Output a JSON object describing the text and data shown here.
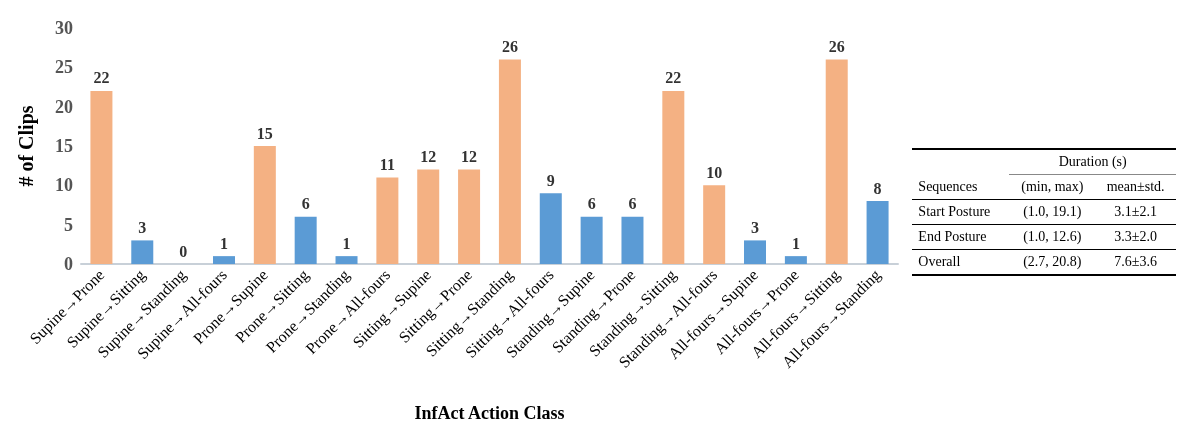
{
  "chart_data": [
    {
      "type": "bar",
      "xlabel": "InfAct Action Class",
      "ylabel": "# of Clips",
      "categories": [
        "Supine→Prone",
        "Supine→Sitting",
        "Supine→Standing",
        "Supine→All-fours",
        "Prone→Supine",
        "Prone→Sitting",
        "Prone→Standing",
        "Prone→All-fours",
        "Sitting→Supine",
        "Sitting→Prone",
        "Sitting→Standing",
        "Sitting→All-fours",
        "Standing→Supine",
        "Standing→Prone",
        "Standing→Sitting",
        "Standing→All-fours",
        "All-fours→Supine",
        "All-fours→Prone",
        "All-fours→Sitting",
        "All-fours→Standing"
      ],
      "values": [
        22,
        3,
        0,
        1,
        15,
        6,
        1,
        11,
        12,
        12,
        26,
        9,
        6,
        6,
        22,
        10,
        3,
        1,
        26,
        8
      ],
      "colors": [
        "#f4b183",
        "#5b9bd5",
        "#5b9bd5",
        "#5b9bd5",
        "#f4b183",
        "#5b9bd5",
        "#5b9bd5",
        "#f4b183",
        "#f4b183",
        "#f4b183",
        "#f4b183",
        "#5b9bd5",
        "#5b9bd5",
        "#5b9bd5",
        "#f4b183",
        "#f4b183",
        "#5b9bd5",
        "#5b9bd5",
        "#f4b183",
        "#5b9bd5"
      ],
      "ylim": [
        0,
        30
      ],
      "yticks": [
        0,
        5,
        10,
        15,
        20,
        25,
        30
      ],
      "grid": false,
      "data_labels": true
    },
    {
      "type": "other",
      "annotations": [
        "Duration (s)",
        "Sequences",
        "(min, max)",
        "mean±std.",
        "Start Posture",
        "(1.0, 19.1)",
        "3.1±2.1",
        "End Posture",
        "(1.0, 12.6)",
        "3.3±2.0",
        "Overall",
        "(2.7, 20.8)",
        "7.6±3.6"
      ]
    }
  ]
}
